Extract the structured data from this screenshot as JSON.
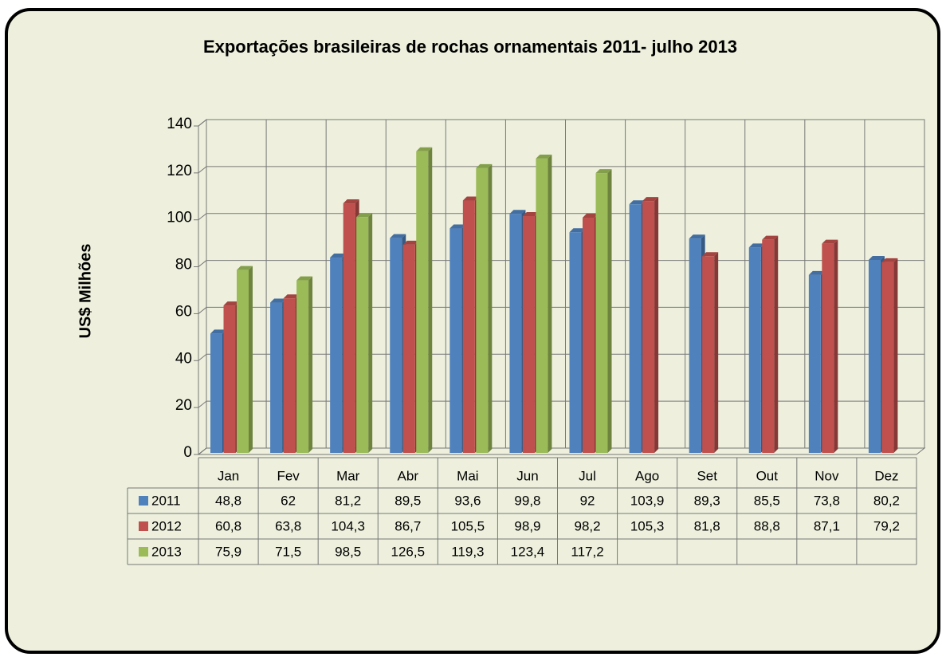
{
  "chart_data": {
    "type": "bar",
    "title": "Exportações brasileiras de rochas ornamentais 2011- julho 2013",
    "y_label": "US$ Milhões",
    "categories": [
      "Jan",
      "Fev",
      "Mar",
      "Abr",
      "Mai",
      "Jun",
      "Jul",
      "Ago",
      "Set",
      "Out",
      "Nov",
      "Dez"
    ],
    "series": [
      {
        "name": "2011",
        "color": "#4f81bd",
        "values": [
          48.8,
          62,
          81.2,
          89.5,
          93.6,
          99.8,
          92,
          103.9,
          89.3,
          85.5,
          73.8,
          80.2
        ],
        "value_labels": [
          "48,8",
          "62",
          "81,2",
          "89,5",
          "93,6",
          "99,8",
          "92",
          "103,9",
          "89,3",
          "85,5",
          "73,8",
          "80,2"
        ]
      },
      {
        "name": "2012",
        "color": "#c0504d",
        "values": [
          60.8,
          63.8,
          104.3,
          86.7,
          105.5,
          98.9,
          98.2,
          105.3,
          81.8,
          88.8,
          87.1,
          79.2
        ],
        "value_labels": [
          "60,8",
          "63,8",
          "104,3",
          "86,7",
          "105,5",
          "98,9",
          "98,2",
          "105,3",
          "81,8",
          "88,8",
          "87,1",
          "79,2"
        ]
      },
      {
        "name": "2013",
        "color": "#9bbb59",
        "values": [
          75.9,
          71.5,
          98.5,
          126.5,
          119.3,
          123.4,
          117.2,
          null,
          null,
          null,
          null,
          null
        ],
        "value_labels": [
          "75,9",
          "71,5",
          "98,5",
          "126,5",
          "119,3",
          "123,4",
          "117,2",
          null,
          null,
          null,
          null,
          null
        ]
      }
    ],
    "ylim": [
      0,
      140
    ],
    "yticks": [
      0,
      20,
      40,
      60,
      80,
      100,
      120,
      140
    ],
    "grid": true,
    "legend": "table"
  }
}
